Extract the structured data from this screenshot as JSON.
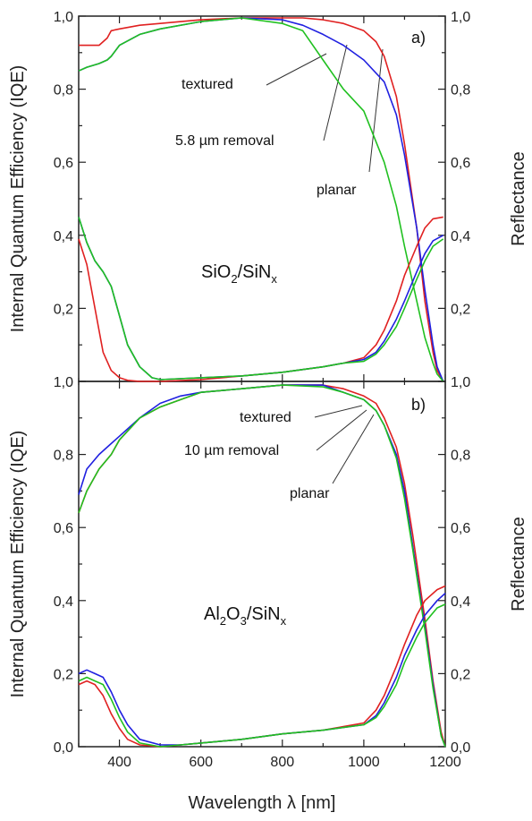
{
  "chart_data": [
    {
      "panel": "a",
      "type": "line",
      "panel_label": "a)",
      "material": {
        "base1": "SiO",
        "sub1": "2",
        "mid": "/SiN",
        "sub2": "x"
      },
      "ylabel_left": "Internal Quantum Efficiency (IQE)",
      "ylabel_right": "Reflectance",
      "xlim": [
        300,
        1200
      ],
      "ylim": [
        0,
        1
      ],
      "yticks": [
        {
          "v": 0.2,
          "label": "0,2"
        },
        {
          "v": 0.4,
          "label": "0,4"
        },
        {
          "v": 0.6,
          "label": "0,6"
        },
        {
          "v": 0.8,
          "label": "0,8"
        },
        {
          "v": 1.0,
          "label": "1,0"
        }
      ],
      "bottom_tick_label": "1,0",
      "annotations": [
        {
          "text": "textured",
          "color": "red"
        },
        {
          "text": "5.8 µm removal",
          "color": "blue"
        },
        {
          "text": "planar",
          "color": "green"
        }
      ],
      "series": [
        {
          "name": "textured",
          "color": "#e02020",
          "kind": "IQE",
          "x": [
            300,
            320,
            350,
            370,
            380,
            400,
            450,
            500,
            600,
            700,
            800,
            850,
            900,
            950,
            1000,
            1030,
            1050,
            1080,
            1100,
            1130,
            1150,
            1170,
            1180,
            1195
          ],
          "y": [
            0.92,
            0.92,
            0.92,
            0.94,
            0.96,
            0.965,
            0.975,
            0.98,
            0.99,
            0.995,
            0.995,
            0.995,
            0.99,
            0.98,
            0.96,
            0.93,
            0.89,
            0.78,
            0.65,
            0.42,
            0.22,
            0.08,
            0.03,
            0.0
          ]
        },
        {
          "name": "5.8 µm removal",
          "color": "#2020e0",
          "kind": "IQE",
          "x": [
            300,
            320,
            350,
            370,
            380,
            400,
            450,
            500,
            600,
            700,
            800,
            850,
            900,
            950,
            1000,
            1050,
            1080,
            1100,
            1130,
            1150,
            1170,
            1180,
            1195
          ],
          "y": [
            0.85,
            0.86,
            0.87,
            0.88,
            0.89,
            0.92,
            0.95,
            0.965,
            0.985,
            0.995,
            0.99,
            0.975,
            0.95,
            0.92,
            0.88,
            0.82,
            0.73,
            0.62,
            0.42,
            0.25,
            0.1,
            0.04,
            0.0
          ]
        },
        {
          "name": "planar",
          "color": "#20c020",
          "kind": "IQE",
          "x": [
            300,
            320,
            350,
            370,
            380,
            400,
            450,
            500,
            600,
            700,
            800,
            850,
            900,
            950,
            1000,
            1050,
            1080,
            1100,
            1130,
            1150,
            1170,
            1180,
            1195
          ],
          "y": [
            0.85,
            0.86,
            0.87,
            0.88,
            0.89,
            0.92,
            0.95,
            0.965,
            0.985,
            0.995,
            0.98,
            0.96,
            0.88,
            0.8,
            0.74,
            0.6,
            0.48,
            0.37,
            0.22,
            0.12,
            0.05,
            0.02,
            0.0
          ]
        },
        {
          "name": "textured",
          "color": "#e02020",
          "kind": "R",
          "x": [
            300,
            320,
            340,
            360,
            380,
            400,
            420,
            450,
            500,
            600,
            700,
            800,
            900,
            950,
            1000,
            1030,
            1050,
            1080,
            1100,
            1130,
            1150,
            1170,
            1195
          ],
          "y": [
            0.39,
            0.32,
            0.2,
            0.08,
            0.03,
            0.01,
            0.003,
            0.0,
            0.0,
            0.005,
            0.015,
            0.025,
            0.04,
            0.05,
            0.065,
            0.1,
            0.14,
            0.22,
            0.29,
            0.37,
            0.42,
            0.445,
            0.45
          ]
        },
        {
          "name": "5.8 µm removal",
          "color": "#2020e0",
          "kind": "R",
          "x": [
            300,
            320,
            340,
            360,
            380,
            400,
            420,
            450,
            480,
            500,
            600,
            700,
            800,
            900,
            950,
            1000,
            1030,
            1050,
            1080,
            1100,
            1130,
            1150,
            1170,
            1195
          ],
          "y": [
            0.45,
            0.38,
            0.33,
            0.3,
            0.26,
            0.18,
            0.1,
            0.04,
            0.01,
            0.005,
            0.01,
            0.015,
            0.025,
            0.04,
            0.05,
            0.06,
            0.08,
            0.11,
            0.17,
            0.22,
            0.3,
            0.35,
            0.385,
            0.4
          ]
        },
        {
          "name": "planar",
          "color": "#20c020",
          "kind": "R",
          "x": [
            300,
            320,
            340,
            360,
            380,
            400,
            420,
            450,
            480,
            500,
            600,
            700,
            800,
            900,
            950,
            1000,
            1030,
            1050,
            1080,
            1100,
            1130,
            1150,
            1170,
            1195
          ],
          "y": [
            0.45,
            0.38,
            0.33,
            0.3,
            0.26,
            0.18,
            0.1,
            0.04,
            0.01,
            0.005,
            0.01,
            0.015,
            0.025,
            0.04,
            0.05,
            0.055,
            0.075,
            0.1,
            0.15,
            0.2,
            0.28,
            0.33,
            0.37,
            0.39
          ]
        }
      ]
    },
    {
      "panel": "b",
      "type": "line",
      "panel_label": "b)",
      "material": {
        "base1": "Al",
        "sub1": "2",
        "mid1": "O",
        "sub_mid": "3",
        "mid": "/SiN",
        "sub2": "x"
      },
      "ylabel_left": "Internal Quantum Efficiency (IQE)",
      "ylabel_right": "Reflectance",
      "xlabel": "Wavelength λ [nm]",
      "xlim": [
        300,
        1200
      ],
      "ylim": [
        0,
        1
      ],
      "xticks": [
        {
          "v": 400,
          "label": "400"
        },
        {
          "v": 600,
          "label": "600"
        },
        {
          "v": 800,
          "label": "800"
        },
        {
          "v": 1000,
          "label": "1000"
        },
        {
          "v": 1200,
          "label": "1200"
        }
      ],
      "yticks": [
        {
          "v": 0.0,
          "label": "0,0"
        },
        {
          "v": 0.2,
          "label": "0,2"
        },
        {
          "v": 0.4,
          "label": "0,4"
        },
        {
          "v": 0.6,
          "label": "0,6"
        },
        {
          "v": 0.8,
          "label": "0,8"
        }
      ],
      "annotations": [
        {
          "text": "textured",
          "color": "red"
        },
        {
          "text": "10 µm removal",
          "color": "blue"
        },
        {
          "text": "planar",
          "color": "green"
        }
      ],
      "series": [
        {
          "name": "textured",
          "color": "#e02020",
          "kind": "IQE",
          "x": [
            300,
            320,
            350,
            380,
            400,
            450,
            500,
            550,
            600,
            700,
            800,
            900,
            950,
            1000,
            1030,
            1050,
            1080,
            1100,
            1120,
            1150,
            1170,
            1190,
            1200
          ],
          "y": [
            0.64,
            0.7,
            0.76,
            0.8,
            0.84,
            0.9,
            0.93,
            0.95,
            0.97,
            0.98,
            0.99,
            0.99,
            0.98,
            0.96,
            0.94,
            0.9,
            0.82,
            0.72,
            0.58,
            0.35,
            0.18,
            0.04,
            0.0
          ]
        },
        {
          "name": "10 µm removal",
          "color": "#2020e0",
          "kind": "IQE",
          "x": [
            300,
            320,
            350,
            380,
            400,
            450,
            500,
            550,
            600,
            700,
            800,
            900,
            950,
            1000,
            1030,
            1050,
            1080,
            1100,
            1120,
            1150,
            1170,
            1190,
            1200
          ],
          "y": [
            0.69,
            0.76,
            0.8,
            0.83,
            0.85,
            0.9,
            0.94,
            0.96,
            0.97,
            0.98,
            0.99,
            0.99,
            0.97,
            0.95,
            0.92,
            0.88,
            0.8,
            0.7,
            0.55,
            0.33,
            0.17,
            0.03,
            0.0
          ]
        },
        {
          "name": "planar",
          "color": "#20c020",
          "kind": "IQE",
          "x": [
            300,
            320,
            350,
            380,
            400,
            450,
            500,
            550,
            600,
            700,
            800,
            900,
            950,
            1000,
            1030,
            1050,
            1080,
            1100,
            1120,
            1150,
            1170,
            1190,
            1200
          ],
          "y": [
            0.64,
            0.7,
            0.76,
            0.8,
            0.84,
            0.9,
            0.93,
            0.95,
            0.97,
            0.98,
            0.99,
            0.985,
            0.97,
            0.95,
            0.92,
            0.88,
            0.79,
            0.68,
            0.54,
            0.32,
            0.16,
            0.03,
            0.0
          ]
        },
        {
          "name": "textured",
          "color": "#e02020",
          "kind": "R",
          "x": [
            300,
            320,
            340,
            360,
            380,
            400,
            420,
            450,
            500,
            550,
            600,
            700,
            800,
            900,
            1000,
            1030,
            1050,
            1080,
            1100,
            1130,
            1150,
            1180,
            1200
          ],
          "y": [
            0.17,
            0.18,
            0.17,
            0.14,
            0.09,
            0.05,
            0.02,
            0.005,
            0.0,
            0.005,
            0.01,
            0.02,
            0.035,
            0.045,
            0.065,
            0.1,
            0.14,
            0.22,
            0.28,
            0.36,
            0.4,
            0.43,
            0.44
          ]
        },
        {
          "name": "10 µm removal",
          "color": "#2020e0",
          "kind": "R",
          "x": [
            300,
            320,
            340,
            360,
            380,
            400,
            420,
            450,
            500,
            550,
            600,
            700,
            800,
            900,
            1000,
            1030,
            1050,
            1080,
            1100,
            1130,
            1150,
            1180,
            1200
          ],
          "y": [
            0.2,
            0.21,
            0.2,
            0.19,
            0.15,
            0.1,
            0.06,
            0.02,
            0.005,
            0.005,
            0.01,
            0.02,
            0.035,
            0.045,
            0.06,
            0.085,
            0.12,
            0.19,
            0.25,
            0.32,
            0.36,
            0.4,
            0.42
          ]
        },
        {
          "name": "planar",
          "color": "#20c020",
          "kind": "R",
          "x": [
            300,
            320,
            340,
            360,
            380,
            400,
            420,
            450,
            500,
            550,
            600,
            700,
            800,
            900,
            1000,
            1030,
            1050,
            1080,
            1100,
            1130,
            1150,
            1180,
            1200
          ],
          "y": [
            0.18,
            0.19,
            0.18,
            0.17,
            0.13,
            0.08,
            0.04,
            0.01,
            0.0,
            0.005,
            0.01,
            0.02,
            0.035,
            0.045,
            0.06,
            0.08,
            0.11,
            0.17,
            0.23,
            0.3,
            0.34,
            0.38,
            0.39
          ]
        }
      ]
    }
  ]
}
